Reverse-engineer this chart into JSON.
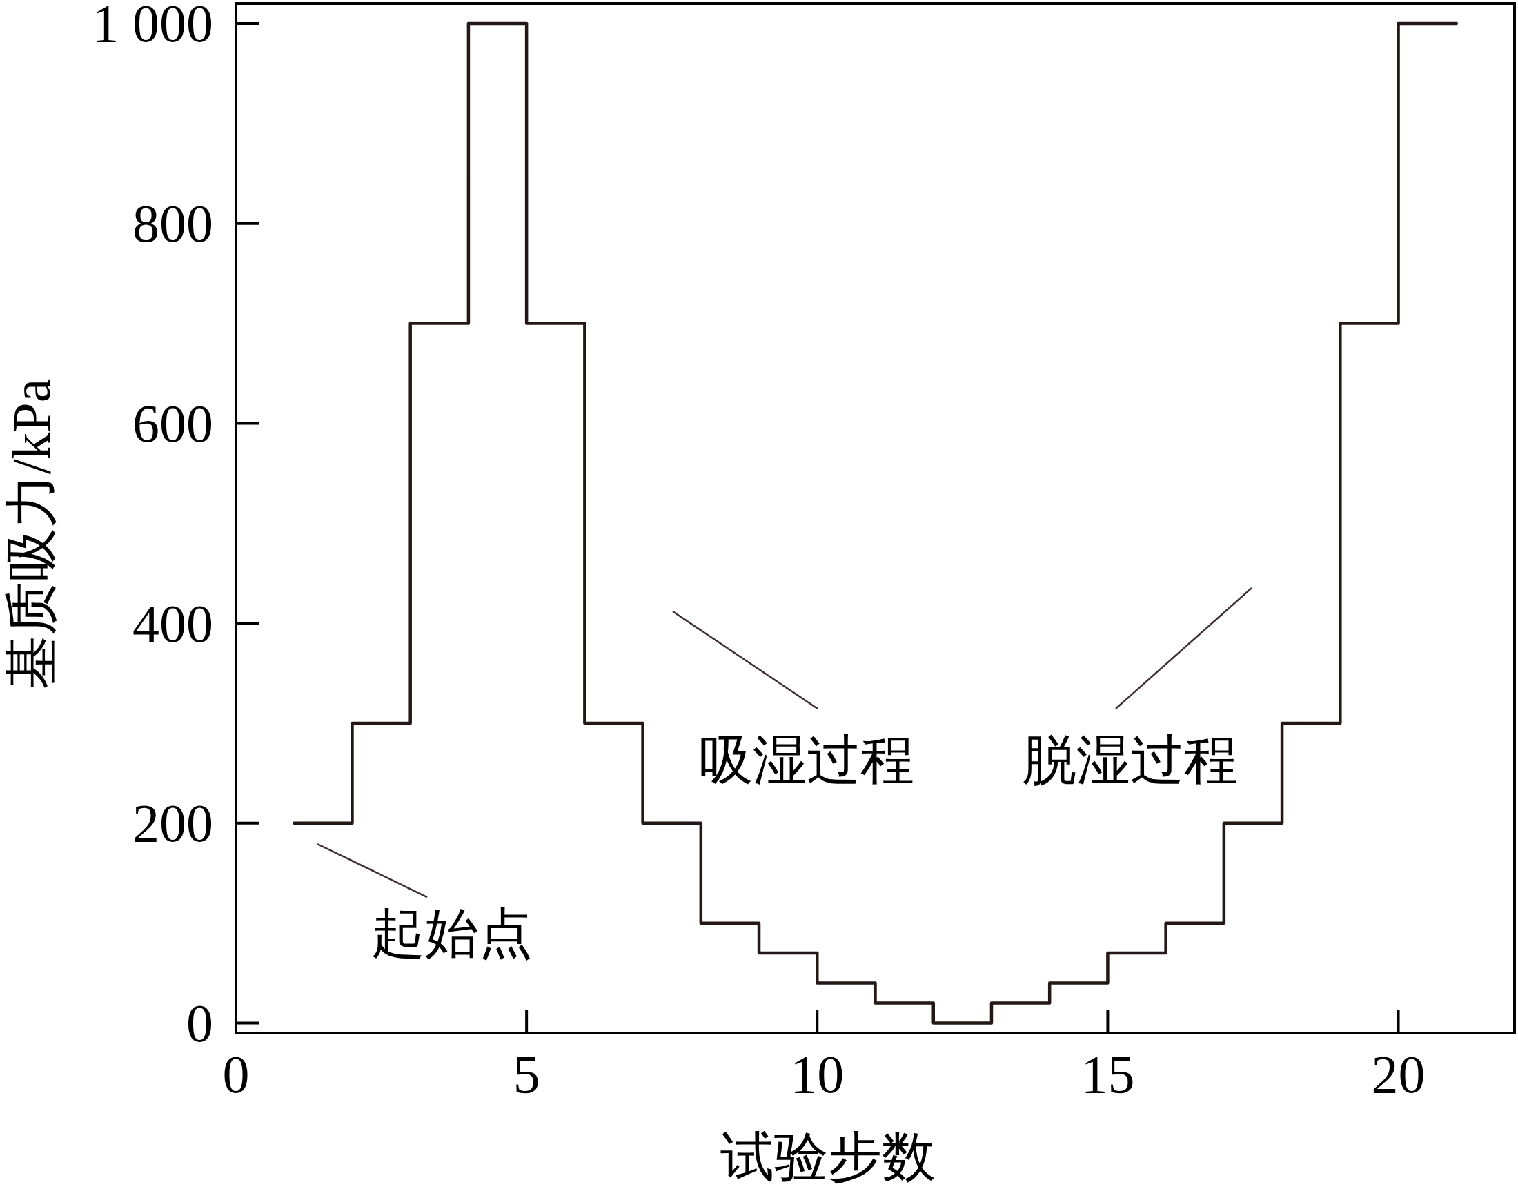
{
  "chart_data": {
    "type": "step",
    "xlabel": "试验步数",
    "ylabel": "基质吸力/kPa",
    "x": [
      1,
      2,
      3,
      4,
      5,
      6,
      7,
      8,
      9,
      10,
      11,
      12,
      13,
      14,
      15,
      16,
      17,
      18,
      19,
      20,
      21
    ],
    "values": [
      200,
      300,
      700,
      1000,
      700,
      300,
      200,
      100,
      70,
      40,
      20,
      0,
      20,
      40,
      70,
      100,
      200,
      300,
      700,
      1000,
      1000
    ],
    "color": "#231815",
    "xlim": [
      0,
      22
    ],
    "xticks": [
      0,
      5,
      10,
      15,
      20
    ],
    "ylim": [
      -10,
      1020
    ],
    "yticks": [
      0,
      200,
      400,
      600,
      800,
      {
        "value": 1000,
        "label": "1 000"
      }
    ],
    "annotations": [
      "起始点",
      "吸湿过程",
      "脱湿过程"
    ]
  }
}
